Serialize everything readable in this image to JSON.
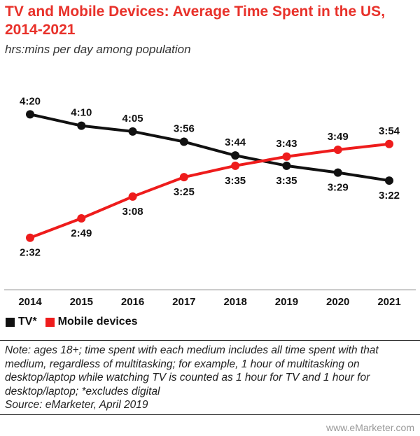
{
  "title": "TV and Mobile Devices: Average Time Spent in the US, 2014-2021",
  "subtitle": "hrs:mins per day among population",
  "note": "Note: ages 18+; time spent with each medium includes all time spent with that medium, regardless of multitasking; for example, 1 hour of multitasking on desktop/laptop while watching TV is counted as 1 hour for TV and 1 hour for desktop/laptop; *excludes digital",
  "source": "Source: eMarketer, April 2019",
  "watermark": "www.eMarketer.com",
  "chart_data": {
    "type": "line",
    "categories": [
      "2014",
      "2015",
      "2016",
      "2017",
      "2018",
      "2019",
      "2020",
      "2021"
    ],
    "series": [
      {
        "name": "TV*",
        "color": "#111111",
        "values": [
          260,
          250,
          245,
          236,
          224,
          215,
          209,
          202
        ],
        "labels": [
          "4:20",
          "4:10",
          "4:05",
          "3:56",
          "3:44",
          "3:35",
          "3:29",
          "3:22"
        ],
        "label_pos": [
          "above",
          "above",
          "above",
          "above",
          "above",
          "below",
          "below",
          "below"
        ]
      },
      {
        "name": "Mobile devices",
        "color": "#ee1c1c",
        "values": [
          152,
          169,
          188,
          205,
          215,
          223,
          229,
          234
        ],
        "labels": [
          "2:32",
          "2:49",
          "3:08",
          "3:25",
          "3:35",
          "3:43",
          "3:49",
          "3:54"
        ],
        "label_pos": [
          "below",
          "below",
          "below",
          "below",
          "below",
          "above",
          "above",
          "above"
        ]
      }
    ],
    "ylim": [
      120,
      300
    ],
    "grid": false,
    "legend": "bottom-left"
  }
}
